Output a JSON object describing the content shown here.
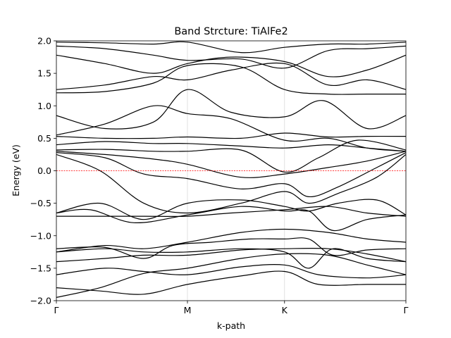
{
  "chart_data": {
    "type": "line",
    "title": "Band Strcture: TiAlFe2",
    "xlabel": "k-path",
    "ylabel": "Energy (eV)",
    "ylim": [
      -2.0,
      2.0
    ],
    "xlim": [
      0,
      3.6
    ],
    "high_symmetry_points": [
      {
        "label": "Γ",
        "x": 0.0
      },
      {
        "label": "M",
        "x": 1.35
      },
      {
        "label": "K",
        "x": 2.35
      },
      {
        "label": "Γ",
        "x": 3.6
      }
    ],
    "y_ticks": [
      {
        "v": -2.0,
        "label": "−2.0"
      },
      {
        "v": -1.5,
        "label": "−1.5"
      },
      {
        "v": -1.0,
        "label": "−1.0"
      },
      {
        "v": -0.5,
        "label": "−0.5"
      },
      {
        "v": 0.0,
        "label": "0.0"
      },
      {
        "v": 0.5,
        "label": "0.5"
      },
      {
        "v": 1.0,
        "label": "1.0"
      },
      {
        "v": 1.5,
        "label": "1.5"
      },
      {
        "v": 2.0,
        "label": "2.0"
      }
    ],
    "fermi_level": 0.0,
    "vertical_grid": true,
    "colors": {
      "bands": "#000000",
      "fermi": "#ff0000",
      "grid": "#d9d9d9"
    },
    "bands": [
      [
        [
          0,
          -1.95
        ],
        [
          0.45,
          -1.8
        ],
        [
          0.9,
          -1.58
        ],
        [
          1.35,
          -1.5
        ],
        [
          1.9,
          -1.35
        ],
        [
          2.35,
          -1.28
        ],
        [
          2.8,
          -1.3
        ],
        [
          3.2,
          -1.45
        ],
        [
          3.6,
          -1.6
        ]
      ],
      [
        [
          0,
          -1.8
        ],
        [
          0.45,
          -1.85
        ],
        [
          0.9,
          -1.9
        ],
        [
          1.35,
          -1.75
        ],
        [
          1.9,
          -1.62
        ],
        [
          2.35,
          -1.55
        ],
        [
          2.7,
          -1.75
        ],
        [
          3.2,
          -1.75
        ],
        [
          3.6,
          -1.75
        ]
      ],
      [
        [
          0,
          -1.6
        ],
        [
          0.5,
          -1.5
        ],
        [
          0.9,
          -1.55
        ],
        [
          1.35,
          -1.6
        ],
        [
          1.9,
          -1.48
        ],
        [
          2.35,
          -1.45
        ],
        [
          2.7,
          -1.6
        ],
        [
          3.2,
          -1.65
        ],
        [
          3.6,
          -1.6
        ]
      ],
      [
        [
          0,
          -1.4
        ],
        [
          0.5,
          -1.35
        ],
        [
          0.9,
          -1.3
        ],
        [
          1.35,
          -1.3
        ],
        [
          1.9,
          -1.22
        ],
        [
          2.35,
          -1.2
        ],
        [
          2.8,
          -1.2
        ],
        [
          3.2,
          -1.28
        ],
        [
          3.6,
          -1.4
        ]
      ],
      [
        [
          0,
          -1.25
        ],
        [
          0.5,
          -1.2
        ],
        [
          0.9,
          -1.25
        ],
        [
          1.35,
          -1.25
        ],
        [
          1.9,
          -1.2
        ],
        [
          2.35,
          -1.25
        ],
        [
          2.6,
          -1.5
        ],
        [
          2.85,
          -1.2
        ],
        [
          3.2,
          -1.35
        ],
        [
          3.6,
          -1.4
        ]
      ],
      [
        [
          0,
          -1.2
        ],
        [
          0.5,
          -1.18
        ],
        [
          0.9,
          -1.35
        ],
        [
          1.2,
          -1.15
        ],
        [
          1.6,
          -1.1
        ],
        [
          2.0,
          -1.05
        ],
        [
          2.35,
          -1.05
        ],
        [
          2.6,
          -1.05
        ],
        [
          2.85,
          -1.3
        ],
        [
          3.2,
          -1.22
        ],
        [
          3.6,
          -1.2
        ]
      ],
      [
        [
          0,
          -1.25
        ],
        [
          0.5,
          -1.15
        ],
        [
          0.9,
          -1.2
        ],
        [
          1.35,
          -1.1
        ],
        [
          1.9,
          -0.95
        ],
        [
          2.35,
          -0.9
        ],
        [
          2.8,
          -0.95
        ],
        [
          3.2,
          -1.05
        ],
        [
          3.6,
          -1.1
        ]
      ],
      [
        [
          0,
          -0.7
        ],
        [
          0.4,
          -0.7
        ],
        [
          0.9,
          -0.7
        ],
        [
          1.35,
          -0.7
        ],
        [
          1.8,
          -0.65
        ],
        [
          2.35,
          -0.6
        ],
        [
          2.8,
          -0.55
        ],
        [
          3.2,
          -0.65
        ],
        [
          3.6,
          -0.7
        ]
      ],
      [
        [
          0,
          -0.65
        ],
        [
          0.35,
          -0.6
        ],
        [
          0.8,
          -0.8
        ],
        [
          1.35,
          -0.68
        ],
        [
          1.9,
          -0.55
        ],
        [
          2.35,
          -0.62
        ],
        [
          2.6,
          -0.62
        ],
        [
          2.85,
          -0.92
        ],
        [
          3.2,
          -0.75
        ],
        [
          3.6,
          -0.68
        ]
      ],
      [
        [
          0,
          -0.65
        ],
        [
          0.45,
          -0.5
        ],
        [
          0.9,
          -0.75
        ],
        [
          1.35,
          -0.5
        ],
        [
          1.9,
          -0.45
        ],
        [
          2.35,
          -0.55
        ],
        [
          2.6,
          -0.62
        ],
        [
          2.9,
          -0.5
        ],
        [
          3.3,
          -0.45
        ],
        [
          3.6,
          -0.68
        ]
      ],
      [
        [
          0,
          0.25
        ],
        [
          0.45,
          0.0
        ],
        [
          0.9,
          -0.5
        ],
        [
          1.35,
          -0.65
        ],
        [
          1.9,
          -0.5
        ],
        [
          2.35,
          -0.32
        ],
        [
          2.6,
          -0.5
        ],
        [
          2.9,
          -0.35
        ],
        [
          3.3,
          -0.1
        ],
        [
          3.6,
          0.25
        ]
      ],
      [
        [
          0,
          0.28
        ],
        [
          0.5,
          0.2
        ],
        [
          0.9,
          -0.05
        ],
        [
          1.35,
          -0.12
        ],
        [
          1.9,
          -0.28
        ],
        [
          2.35,
          -0.2
        ],
        [
          2.6,
          -0.4
        ],
        [
          2.9,
          -0.25
        ],
        [
          3.3,
          0.05
        ],
        [
          3.6,
          0.28
        ]
      ],
      [
        [
          0,
          0.3
        ],
        [
          0.5,
          0.25
        ],
        [
          1.0,
          0.18
        ],
        [
          1.35,
          0.1
        ],
        [
          1.9,
          -0.1
        ],
        [
          2.35,
          -0.05
        ],
        [
          2.8,
          0.05
        ],
        [
          3.2,
          0.15
        ],
        [
          3.6,
          0.3
        ]
      ],
      [
        [
          0,
          0.32
        ],
        [
          0.5,
          0.33
        ],
        [
          1.0,
          0.3
        ],
        [
          1.35,
          0.3
        ],
        [
          1.9,
          0.32
        ],
        [
          2.35,
          -0.02
        ],
        [
          2.7,
          0.2
        ],
        [
          3.1,
          0.47
        ],
        [
          3.6,
          0.32
        ]
      ],
      [
        [
          0,
          0.4
        ],
        [
          0.5,
          0.45
        ],
        [
          1.0,
          0.42
        ],
        [
          1.35,
          0.42
        ],
        [
          1.9,
          0.38
        ],
        [
          2.35,
          0.35
        ],
        [
          2.8,
          0.4
        ],
        [
          3.2,
          0.35
        ],
        [
          3.6,
          0.3
        ]
      ],
      [
        [
          0,
          0.53
        ],
        [
          0.5,
          0.5
        ],
        [
          1.0,
          0.5
        ],
        [
          1.35,
          0.52
        ],
        [
          1.9,
          0.5
        ],
        [
          2.35,
          0.58
        ],
        [
          2.8,
          0.52
        ],
        [
          3.2,
          0.53
        ],
        [
          3.6,
          0.53
        ]
      ],
      [
        [
          0,
          0.55
        ],
        [
          0.5,
          0.72
        ],
        [
          1.0,
          1.0
        ],
        [
          1.35,
          0.88
        ],
        [
          1.8,
          0.8
        ],
        [
          2.35,
          0.47
        ],
        [
          2.8,
          0.5
        ],
        [
          3.2,
          0.35
        ],
        [
          3.6,
          0.3
        ]
      ],
      [
        [
          0,
          0.85
        ],
        [
          0.5,
          0.65
        ],
        [
          1.0,
          0.75
        ],
        [
          1.35,
          1.25
        ],
        [
          1.8,
          0.9
        ],
        [
          2.35,
          0.83
        ],
        [
          2.75,
          1.08
        ],
        [
          3.2,
          0.65
        ],
        [
          3.6,
          0.85
        ]
      ],
      [
        [
          0,
          1.2
        ],
        [
          0.5,
          1.22
        ],
        [
          1.0,
          1.35
        ],
        [
          1.35,
          1.62
        ],
        [
          1.9,
          1.6
        ],
        [
          2.35,
          1.25
        ],
        [
          2.8,
          1.18
        ],
        [
          3.2,
          1.18
        ],
        [
          3.6,
          1.18
        ]
      ],
      [
        [
          0,
          1.25
        ],
        [
          0.5,
          1.32
        ],
        [
          1.0,
          1.45
        ],
        [
          1.35,
          1.4
        ],
        [
          1.8,
          1.55
        ],
        [
          2.35,
          1.65
        ],
        [
          2.8,
          1.32
        ],
        [
          3.2,
          1.4
        ],
        [
          3.6,
          1.25
        ]
      ],
      [
        [
          0,
          1.78
        ],
        [
          0.5,
          1.65
        ],
        [
          1.0,
          1.5
        ],
        [
          1.35,
          1.65
        ],
        [
          1.8,
          1.75
        ],
        [
          2.35,
          1.68
        ],
        [
          2.8,
          1.45
        ],
        [
          3.2,
          1.55
        ],
        [
          3.6,
          1.78
        ]
      ],
      [
        [
          0,
          1.92
        ],
        [
          0.5,
          1.88
        ],
        [
          1.0,
          1.78
        ],
        [
          1.35,
          1.7
        ],
        [
          1.9,
          1.72
        ],
        [
          2.35,
          1.58
        ],
        [
          2.8,
          1.85
        ],
        [
          3.2,
          1.88
        ],
        [
          3.6,
          1.92
        ]
      ],
      [
        [
          0,
          1.98
        ],
        [
          0.5,
          1.97
        ],
        [
          1.0,
          1.95
        ],
        [
          1.35,
          1.98
        ],
        [
          1.9,
          1.82
        ],
        [
          2.35,
          1.9
        ],
        [
          2.8,
          1.95
        ],
        [
          3.2,
          1.95
        ],
        [
          3.6,
          1.98
        ]
      ]
    ]
  }
}
